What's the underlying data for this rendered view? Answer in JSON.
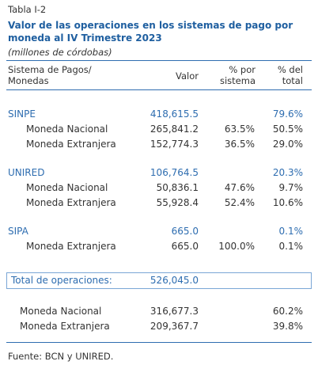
{
  "header": {
    "label": "Tabla I-2",
    "title": "Valor de las operaciones en los sistemas de pago por moneda al IV Trimestre 2023",
    "subtitle": "(millones de córdobas)"
  },
  "columns": [
    "Sistema de Pagos/ Monedas",
    "Valor",
    "% por sistema",
    "% del total"
  ],
  "groups": [
    {
      "name": "SINPE",
      "valor": "418,615.5",
      "del_total": "79.6%",
      "rows": [
        {
          "label": "Moneda Nacional",
          "valor": "265,841.2",
          "por_sistema": "63.5%",
          "del_total": "50.5%"
        },
        {
          "label": "Moneda Extranjera",
          "valor": "152,774.3",
          "por_sistema": "36.5%",
          "del_total": "29.0%"
        }
      ]
    },
    {
      "name": "UNIRED",
      "valor": "106,764.5",
      "del_total": "20.3%",
      "rows": [
        {
          "label": "Moneda Nacional",
          "valor": "50,836.1",
          "por_sistema": "47.6%",
          "del_total": "9.7%"
        },
        {
          "label": "Moneda Extranjera",
          "valor": "55,928.4",
          "por_sistema": "52.4%",
          "del_total": "10.6%"
        }
      ]
    },
    {
      "name": "SIPA",
      "valor": "665.0",
      "del_total": "0.1%",
      "rows": [
        {
          "label": "Moneda Extranjera",
          "valor": "665.0",
          "por_sistema": "100.0%",
          "del_total": "0.1%"
        }
      ]
    }
  ],
  "total": {
    "label": "Total de operaciones:",
    "valor": "526,045.0"
  },
  "summary": [
    {
      "label": "Moneda Nacional",
      "valor": "316,677.3",
      "del_total": "60.2%"
    },
    {
      "label": "Moneda Extranjera",
      "valor": "209,367.7",
      "del_total": "39.8%"
    }
  ],
  "source": "Fuente: BCN y UNIRED."
}
